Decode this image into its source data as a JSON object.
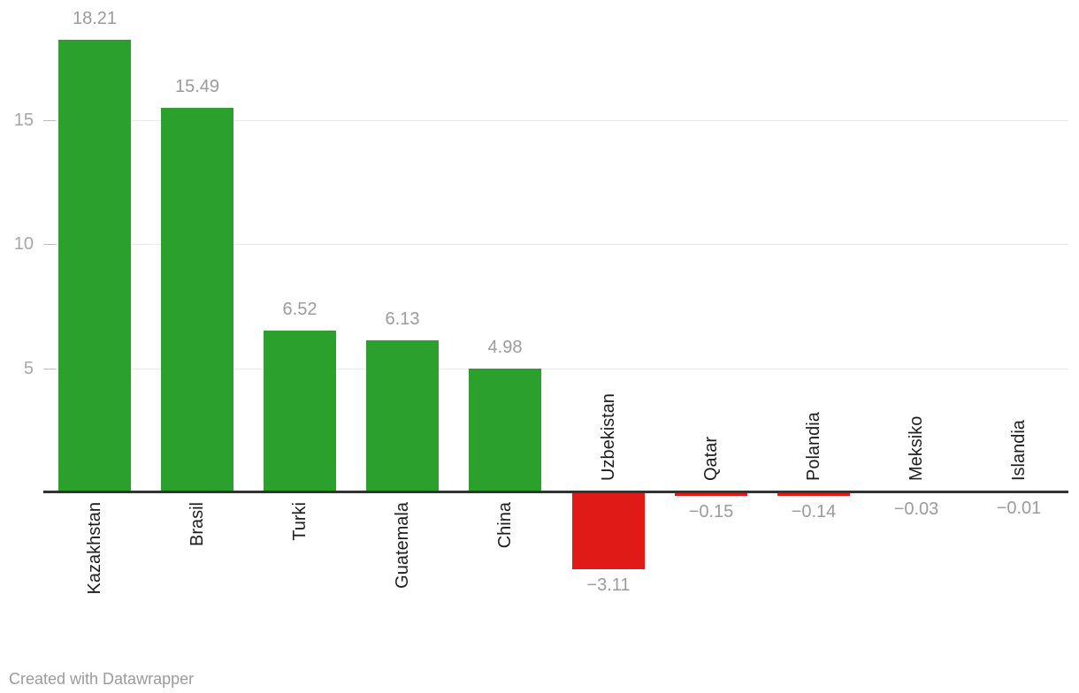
{
  "chart_data": {
    "type": "bar",
    "categories": [
      "Kazakhstan",
      "Brasil",
      "Turki",
      "Guatemala",
      "China",
      "Uzbekistan",
      "Qatar",
      "Polandia",
      "Meksiko",
      "Islandia"
    ],
    "values": [
      18.21,
      15.49,
      6.52,
      6.13,
      4.98,
      -3.11,
      -0.15,
      -0.14,
      -0.03,
      -0.01
    ],
    "value_labels": [
      "18.21",
      "15.49",
      "6.52",
      "6.13",
      "4.98",
      "−3.11",
      "−0.15",
      "−0.14",
      "−0.03",
      "−0.01"
    ],
    "title": "",
    "xlabel": "",
    "ylabel": "",
    "y_ticks": [
      5,
      10,
      15
    ],
    "y_tick_labels": [
      "5",
      "10",
      "15"
    ],
    "ylim": [
      -4.5,
      19.8
    ],
    "grid": true,
    "legend": "none",
    "colors": {
      "positive": "#2ca02c",
      "negative": "#e01b17"
    }
  },
  "footer": {
    "attribution": "Created with Datawrapper"
  }
}
